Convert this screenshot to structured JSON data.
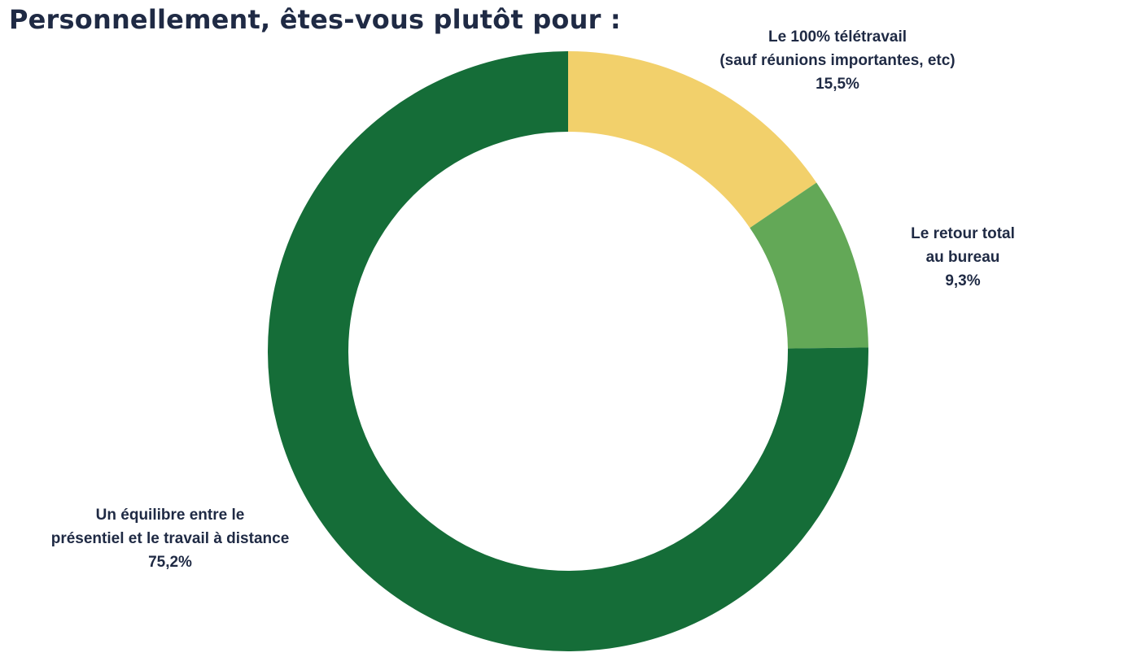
{
  "chart_data": {
    "type": "pie",
    "variant": "donut",
    "title": "Personnellement, êtes-vous plutôt pour :",
    "start": "12 o'clock",
    "direction": "clockwise",
    "slices": [
      {
        "label_lines": [
          "Le 100% télétravail",
          "(sauf réunions importantes, etc)"
        ],
        "value": 15.5,
        "value_label": "15,5%",
        "color": "#f2d06b"
      },
      {
        "label_lines": [
          "Le retour total",
          "au bureau"
        ],
        "value": 9.3,
        "value_label": "9,3%",
        "color": "#63a857"
      },
      {
        "label_lines": [
          "Un équilibre entre le",
          "présentiel et le travail à distance"
        ],
        "value": 75.2,
        "value_label": "75,2%",
        "color": "#156d38"
      }
    ]
  }
}
